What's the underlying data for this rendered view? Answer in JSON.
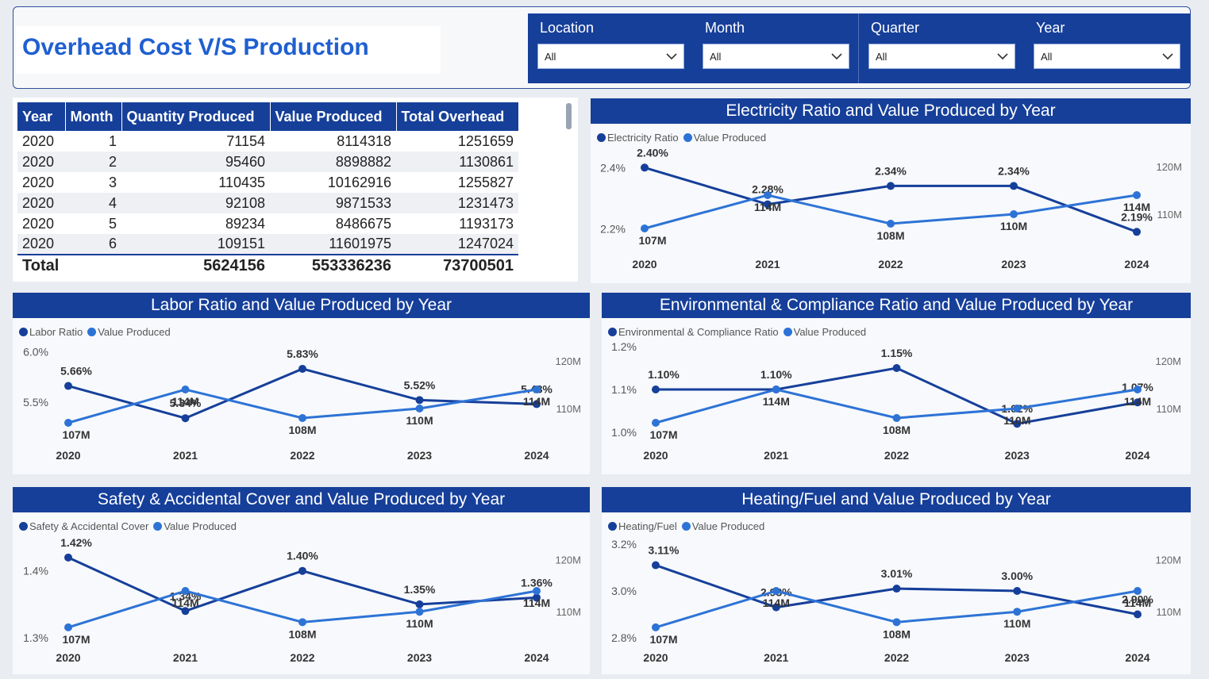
{
  "header": {
    "title": "Overhead Cost V/S Production"
  },
  "filters": [
    {
      "label": "Location",
      "value": "All"
    },
    {
      "label": "Month",
      "value": "All"
    },
    {
      "label": "Quarter",
      "value": "All"
    },
    {
      "label": "Year",
      "value": "All"
    }
  ],
  "table": {
    "columns": [
      "Year",
      "Month",
      "Quantity Produced",
      "Value Produced",
      "Total Overhead"
    ],
    "rows": [
      [
        "2020",
        "1",
        "71154",
        "8114318",
        "1251659"
      ],
      [
        "2020",
        "2",
        "95460",
        "8898882",
        "1130861"
      ],
      [
        "2020",
        "3",
        "110435",
        "10162916",
        "1255827"
      ],
      [
        "2020",
        "4",
        "92108",
        "9871533",
        "1231473"
      ],
      [
        "2020",
        "5",
        "89234",
        "8486675",
        "1193173"
      ],
      [
        "2020",
        "6",
        "109151",
        "11601975",
        "1247024"
      ]
    ],
    "total": [
      "Total",
      "",
      "5624156",
      "553336236",
      "73700501"
    ]
  },
  "colors": {
    "ratio": "#163f9a",
    "value": "#2d73d6",
    "header": "#163f9a",
    "title": "#1f5fd1"
  },
  "chart_data": [
    {
      "type": "line",
      "title": "Electricity Ratio and Value Produced by Year",
      "x": [
        "2020",
        "2021",
        "2022",
        "2023",
        "2024"
      ],
      "series": [
        {
          "name": "Electricity Ratio",
          "axis": "left",
          "values": [
            2.4,
            2.28,
            2.34,
            2.34,
            2.19
          ],
          "labels": [
            "2.40%",
            "2.28%",
            "2.34%",
            "2.34%",
            "2.19%"
          ]
        },
        {
          "name": "Value Produced",
          "axis": "right",
          "values": [
            107,
            114,
            108,
            110,
            114
          ],
          "labels": [
            "107M",
            "114M",
            "108M",
            "110M",
            "114M"
          ]
        }
      ],
      "left_axis": {
        "ticks": [
          "2.4%",
          "2.2%"
        ],
        "tick_values": [
          2.4,
          2.2
        ],
        "range": [
          2.17,
          2.45
        ]
      },
      "right_axis": {
        "ticks": [
          "120M",
          "110M"
        ],
        "tick_values": [
          120,
          110
        ],
        "range": [
          105,
          123
        ]
      }
    },
    {
      "type": "line",
      "title": "Labor Ratio and Value Produced by Year",
      "x": [
        "2020",
        "2021",
        "2022",
        "2023",
        "2024"
      ],
      "series": [
        {
          "name": "Labor Ratio",
          "axis": "left",
          "values": [
            5.66,
            5.34,
            5.83,
            5.52,
            5.48
          ],
          "labels": [
            "5.66%",
            "5.34%",
            "5.83%",
            "5.52%",
            "5.48%"
          ]
        },
        {
          "name": "Value Produced",
          "axis": "right",
          "values": [
            107,
            114,
            108,
            110,
            114
          ],
          "labels": [
            "107M",
            "114M",
            "108M",
            "110M",
            "114M"
          ]
        }
      ],
      "left_axis": {
        "ticks": [
          "6.0%",
          "5.5%"
        ],
        "tick_values": [
          6.0,
          5.5
        ],
        "range": [
          5.2,
          6.05
        ]
      },
      "right_axis": {
        "ticks": [
          "120M",
          "110M"
        ],
        "tick_values": [
          120,
          110
        ],
        "range": [
          105,
          123
        ]
      }
    },
    {
      "type": "line",
      "title": "Environmental & Compliance Ratio and Value Produced by Year",
      "x": [
        "2020",
        "2021",
        "2022",
        "2023",
        "2024"
      ],
      "series": [
        {
          "name": "Environmental & Compliance Ratio",
          "axis": "left",
          "values": [
            1.1,
            1.1,
            1.15,
            1.02,
            1.07
          ],
          "labels": [
            "1.10%",
            "1.10%",
            "1.15%",
            "1.02%",
            "1.07%"
          ]
        },
        {
          "name": "Value Produced",
          "axis": "right",
          "values": [
            107,
            114,
            108,
            110,
            114
          ],
          "labels": [
            "107M",
            "114M",
            "108M",
            "110M",
            "114M"
          ]
        }
      ],
      "left_axis": {
        "ticks": [
          "1.2%",
          "1.1%",
          "1.0%"
        ],
        "tick_values": [
          1.2,
          1.1,
          1.0
        ],
        "range": [
          1.0,
          1.2
        ]
      },
      "right_axis": {
        "ticks": [
          "120M",
          "110M"
        ],
        "tick_values": [
          120,
          110
        ],
        "range": [
          105,
          123
        ]
      }
    },
    {
      "type": "line",
      "title": "Safety & Accidental Cover and Value Produced by Year",
      "x": [
        "2020",
        "2021",
        "2022",
        "2023",
        "2024"
      ],
      "series": [
        {
          "name": "Safety & Accidental Cover",
          "axis": "left",
          "values": [
            1.42,
            1.34,
            1.4,
            1.35,
            1.36
          ],
          "labels": [
            "1.42%",
            "1.34%",
            "1.40%",
            "1.35%",
            "1.36%"
          ]
        },
        {
          "name": "Value Produced",
          "axis": "right",
          "values": [
            107,
            114,
            108,
            110,
            114
          ],
          "labels": [
            "107M",
            "114M",
            "108M",
            "110M",
            "114M"
          ]
        }
      ],
      "left_axis": {
        "ticks": [
          "1.4%",
          "1.3%"
        ],
        "tick_values": [
          1.4,
          1.3
        ],
        "range": [
          1.3,
          1.44
        ]
      },
      "right_axis": {
        "ticks": [
          "120M",
          "110M"
        ],
        "tick_values": [
          120,
          110
        ],
        "range": [
          105,
          123
        ]
      }
    },
    {
      "type": "line",
      "title": "Heating/Fuel and Value Produced by Year",
      "x": [
        "2020",
        "2021",
        "2022",
        "2023",
        "2024"
      ],
      "series": [
        {
          "name": "Heating/Fuel",
          "axis": "left",
          "values": [
            3.11,
            2.93,
            3.01,
            3.0,
            2.9
          ],
          "labels": [
            "3.11%",
            "2.93%",
            "3.01%",
            "3.00%",
            "2.90%"
          ]
        },
        {
          "name": "Value Produced",
          "axis": "right",
          "values": [
            107,
            114,
            108,
            110,
            114
          ],
          "labels": [
            "107M",
            "114M",
            "108M",
            "110M",
            "114M"
          ]
        }
      ],
      "left_axis": {
        "ticks": [
          "3.2%",
          "3.0%",
          "2.8%"
        ],
        "tick_values": [
          3.2,
          3.0,
          2.8
        ],
        "range": [
          2.8,
          3.2
        ]
      },
      "right_axis": {
        "ticks": [
          "120M",
          "110M"
        ],
        "tick_values": [
          120,
          110
        ],
        "range": [
          105,
          123
        ]
      }
    }
  ]
}
